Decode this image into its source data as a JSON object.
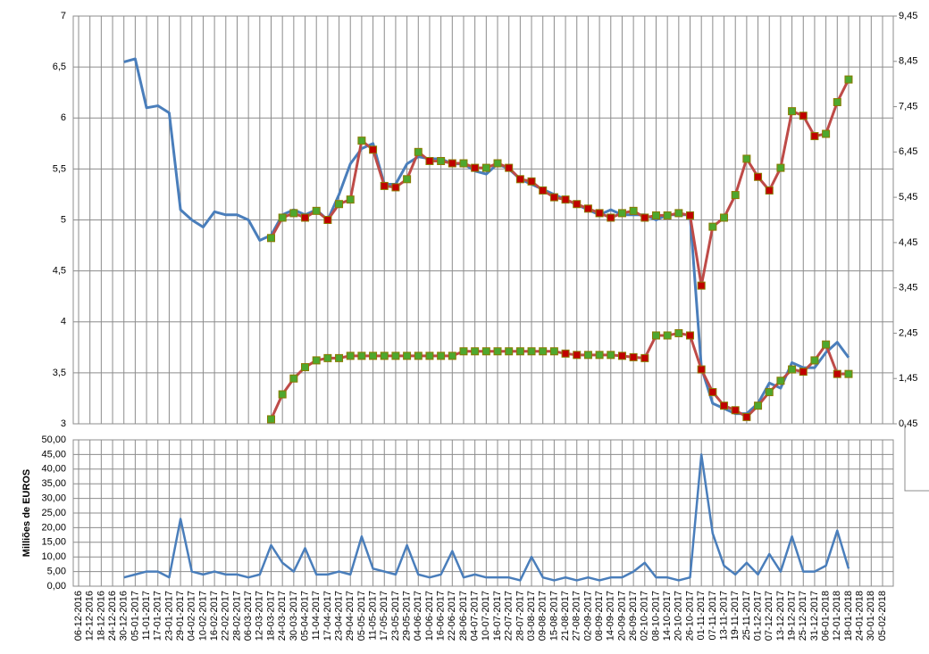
{
  "chart_data": [
    {
      "type": "line",
      "ylim": [
        3,
        7
      ],
      "yticks": [
        3,
        {
          "value": 3.5,
          "label": "3,5"
        },
        4,
        {
          "value": 4.5,
          "label": "4,5"
        },
        5,
        {
          "value": 5.5,
          "label": "5,5"
        },
        6,
        {
          "value": 6.5,
          "label": "6,5"
        },
        7
      ],
      "y2lim": [
        0.45,
        9.45
      ],
      "y2ticks": [
        {
          "value": 0.45,
          "label": "0,45"
        },
        {
          "value": 1.45,
          "label": "1,45"
        },
        {
          "value": 2.45,
          "label": "2,45"
        },
        {
          "value": 3.45,
          "label": "3,45"
        },
        {
          "value": 4.45,
          "label": "4,45"
        },
        {
          "value": 5.45,
          "label": "5,45"
        },
        {
          "value": 6.45,
          "label": "6,45"
        },
        {
          "value": 7.45,
          "label": "7,45"
        },
        {
          "value": 8.45,
          "label": "8,45"
        },
        {
          "value": 9.45,
          "label": "9,45"
        }
      ],
      "grid": true,
      "up_color": "#4ea72e",
      "down_color": "#c00000",
      "series": [
        {
          "color": "#4a7ebb",
          "axis": "y",
          "markers": false,
          "values": [
            null,
            null,
            null,
            null,
            6.55,
            6.58,
            6.1,
            6.12,
            6.05,
            5.1,
            5.0,
            4.93,
            5.08,
            5.05,
            5.05,
            5.0,
            4.8,
            4.85,
            5.05,
            5.1,
            5.05,
            5.1,
            5.0,
            5.25,
            5.55,
            5.7,
            5.75,
            5.35,
            5.35,
            5.55,
            5.62,
            5.6,
            5.6,
            5.55,
            5.55,
            5.48,
            5.45,
            5.55,
            5.5,
            5.4,
            5.35,
            5.3,
            5.25,
            5.2,
            5.15,
            5.1,
            5.05,
            5.1,
            5.05,
            5.05,
            5.05,
            5.0,
            5.05,
            5.05,
            5.05,
            3.55,
            3.2,
            3.15,
            3.1,
            3.1,
            3.2,
            3.4,
            3.35,
            3.6,
            3.55,
            3.55,
            3.7,
            3.8,
            3.65,
            null,
            null,
            null
          ]
        },
        {
          "color": "#be4b48",
          "axis": "y2",
          "markers": true,
          "values": [
            null,
            null,
            null,
            null,
            null,
            null,
            null,
            null,
            null,
            null,
            null,
            null,
            null,
            null,
            null,
            null,
            null,
            4.55,
            5.0,
            5.1,
            5.0,
            5.15,
            4.95,
            5.3,
            5.4,
            6.7,
            6.5,
            5.7,
            5.67,
            5.85,
            6.45,
            6.25,
            6.25,
            6.2,
            6.2,
            6.1,
            6.1,
            6.2,
            6.1,
            5.85,
            5.8,
            5.6,
            5.45,
            5.4,
            5.3,
            5.2,
            5.1,
            5.0,
            5.1,
            5.15,
            5.0,
            5.05,
            5.05,
            5.1,
            5.05,
            3.5,
            4.8,
            5.0,
            5.5,
            6.3,
            5.9,
            5.6,
            6.1,
            7.35,
            7.25,
            6.8,
            6.85,
            7.55,
            8.05,
            null,
            null,
            null
          ]
        },
        {
          "color": "#be4b48",
          "axis": "y2",
          "markers": true,
          "values": [
            null,
            null,
            null,
            null,
            null,
            null,
            null,
            null,
            null,
            null,
            null,
            null,
            null,
            null,
            null,
            null,
            null,
            0.55,
            1.1,
            1.45,
            1.7,
            1.85,
            1.9,
            1.9,
            1.95,
            1.95,
            1.95,
            1.95,
            1.95,
            1.95,
            1.95,
            1.95,
            1.95,
            1.95,
            2.05,
            2.05,
            2.05,
            2.05,
            2.05,
            2.05,
            2.05,
            2.05,
            2.05,
            2.0,
            1.97,
            1.97,
            1.97,
            1.97,
            1.95,
            1.92,
            1.9,
            2.4,
            2.4,
            2.45,
            2.4,
            1.65,
            1.15,
            0.85,
            0.75,
            0.6,
            0.85,
            1.15,
            1.4,
            1.65,
            1.6,
            1.85,
            2.2,
            1.55,
            1.55,
            null,
            null,
            null
          ]
        }
      ]
    },
    {
      "type": "line",
      "ylabel": "Milliões de EUROS",
      "ylim": [
        0,
        50
      ],
      "yticks": [
        {
          "value": 0,
          "label": "0,00"
        },
        {
          "value": 5,
          "label": "5,00"
        },
        {
          "value": 10,
          "label": "10,00"
        },
        {
          "value": 15,
          "label": "15,00"
        },
        {
          "value": 20,
          "label": "20,00"
        },
        {
          "value": 25,
          "label": "25,00"
        },
        {
          "value": 30,
          "label": "30,00"
        },
        {
          "value": 35,
          "label": "35,00"
        },
        {
          "value": 40,
          "label": "40,00"
        },
        {
          "value": 45,
          "label": "45,00"
        },
        {
          "value": 50,
          "label": "50,00"
        }
      ],
      "grid": true,
      "color": "#4a7ebb",
      "categories": [
        "06-12-2016",
        "12-12-2016",
        "18-12-2016",
        "24-12-2016",
        "30-12-2016",
        "05-01-2017",
        "11-01-2017",
        "17-01-2017",
        "23-01-2017",
        "29-01-2017",
        "04-02-2017",
        "10-02-2017",
        "16-02-2017",
        "22-02-2017",
        "28-02-2017",
        "06-03-2017",
        "12-03-2017",
        "18-03-2017",
        "24-03-2017",
        "30-03-2017",
        "05-04-2017",
        "11-04-2017",
        "17-04-2017",
        "23-04-2017",
        "29-04-2017",
        "05-05-2017",
        "11-05-2017",
        "17-05-2017",
        "23-05-2017",
        "29-05-2017",
        "04-06-2017",
        "10-06-2017",
        "16-06-2017",
        "22-06-2017",
        "28-06-2017",
        "04-07-2017",
        "10-07-2017",
        "16-07-2017",
        "22-07-2017",
        "28-07-2017",
        "03-08-2017",
        "09-08-2017",
        "15-08-2017",
        "21-08-2017",
        "27-08-2017",
        "02-09-2017",
        "08-09-2017",
        "14-09-2017",
        "20-09-2017",
        "26-09-2017",
        "02-10-2017",
        "08-10-2017",
        "14-10-2017",
        "20-10-2017",
        "26-10-2017",
        "01-11-2017",
        "07-11-2017",
        "13-11-2017",
        "19-11-2017",
        "25-11-2017",
        "01-12-2017",
        "07-12-2017",
        "13-12-2017",
        "19-12-2017",
        "25-12-2017",
        "31-12-2017",
        "06-01-2018",
        "12-01-2018",
        "18-01-2018",
        "24-01-2018",
        "30-01-2018",
        "05-02-2018"
      ],
      "values": [
        null,
        null,
        null,
        null,
        3,
        4,
        5,
        5,
        3,
        23,
        5,
        4,
        5,
        4,
        4,
        3,
        4,
        14,
        8,
        5,
        13,
        4,
        4,
        5,
        4,
        17,
        6,
        5,
        4,
        14,
        4,
        3,
        4,
        12,
        3,
        4,
        3,
        3,
        3,
        2,
        10,
        3,
        2,
        3,
        2,
        3,
        2,
        3,
        3,
        5,
        8,
        3,
        3,
        2,
        3,
        45,
        18,
        7,
        4,
        8,
        4,
        11,
        5,
        17,
        5,
        5,
        7,
        19,
        6,
        null,
        null,
        null
      ]
    }
  ]
}
